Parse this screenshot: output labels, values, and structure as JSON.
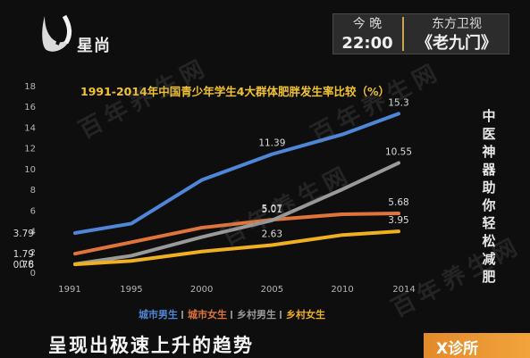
{
  "channel": {
    "logo_text": "星尚"
  },
  "program": {
    "time_label": "今 晚",
    "time": "22:00",
    "station": "东方卫视",
    "show": "《老九门》"
  },
  "side_caption": "中医神器助你轻松减肥",
  "bottom_caption": "呈现出极速上升的趋势",
  "badge": {
    "label": "X诊所"
  },
  "watermarks": [
    "百年养生网",
    "百年养生网",
    "百年养生网",
    "百年养生网"
  ],
  "chart_data": {
    "type": "line",
    "title": "1991-2014年中国青少年学生4大群体肥胖发生率比较（%）",
    "x": [
      1991,
      1995,
      2000,
      2005,
      2010,
      2014
    ],
    "x_tick_labels": [
      "1991",
      "1995",
      "2000",
      "2005",
      "2010",
      "2014"
    ],
    "ylim": [
      0,
      18
    ],
    "y_ticks": [
      0,
      2,
      4,
      6,
      8,
      10,
      12,
      14,
      16,
      18
    ],
    "grid": false,
    "legend_position": "bottom",
    "series": [
      {
        "name": "城市男生",
        "color": "#4f86d8",
        "values": [
          3.79,
          4.7,
          8.9,
          11.39,
          13.3,
          15.3
        ]
      },
      {
        "name": "城市女生",
        "color": "#e0743a",
        "values": [
          1.79,
          2.9,
          4.3,
          5.07,
          5.6,
          5.68
        ]
      },
      {
        "name": "乡村男生",
        "color": "#9a9a9a",
        "values": [
          0.8,
          1.6,
          3.4,
          5.01,
          8.0,
          10.55
        ]
      },
      {
        "name": "乡村女生",
        "color": "#f0b020",
        "values": [
          0.76,
          1.1,
          2.0,
          2.63,
          3.6,
          3.95
        ]
      }
    ],
    "point_labels": [
      {
        "series": 0,
        "index": 0,
        "text": "3.79"
      },
      {
        "series": 0,
        "index": 3,
        "text": "11.39"
      },
      {
        "series": 0,
        "index": 5,
        "text": "15.3"
      },
      {
        "series": 1,
        "index": 0,
        "text": "1.79"
      },
      {
        "series": 1,
        "index": 3,
        "text": "5.07"
      },
      {
        "series": 1,
        "index": 5,
        "text": "5.68"
      },
      {
        "series": 2,
        "index": 0,
        "text": "0.8"
      },
      {
        "series": 2,
        "index": 3,
        "text": "5.01"
      },
      {
        "series": 2,
        "index": 5,
        "text": "10.55"
      },
      {
        "series": 3,
        "index": 0,
        "text": "0.76"
      },
      {
        "series": 3,
        "index": 3,
        "text": "2.63"
      },
      {
        "series": 3,
        "index": 5,
        "text": "3.95"
      }
    ]
  }
}
